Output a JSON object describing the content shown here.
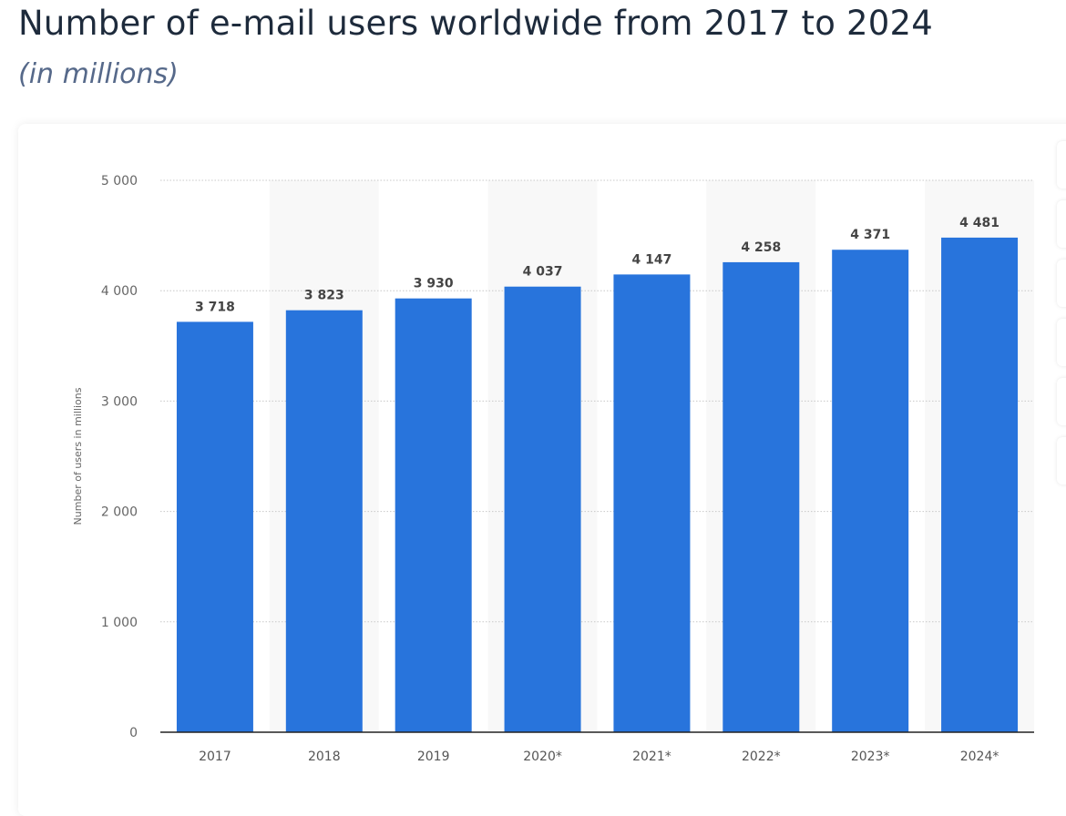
{
  "chart_data": {
    "type": "bar",
    "title": "Number of e-mail users worldwide from 2017 to 2024",
    "subtitle": "(in millions)",
    "categories": [
      "2017",
      "2018",
      "2019",
      "2020*",
      "2021*",
      "2022*",
      "2023*",
      "2024*"
    ],
    "values": [
      3718,
      3823,
      3930,
      4037,
      4147,
      4258,
      4371,
      4481
    ],
    "value_labels": [
      "3 718",
      "3 823",
      "3 930",
      "4 037",
      "4 147",
      "4 258",
      "4 371",
      "4 481"
    ],
    "xlabel": "",
    "ylabel": "Number of users in millions",
    "ylim": [
      0,
      5000
    ],
    "yticks": [
      0,
      1000,
      2000,
      3000,
      4000,
      5000
    ],
    "ytick_labels": [
      "0",
      "1 000",
      "2 000",
      "3 000",
      "4 000",
      "5 000"
    ],
    "grid": true,
    "bar_color": "#2874dc"
  }
}
